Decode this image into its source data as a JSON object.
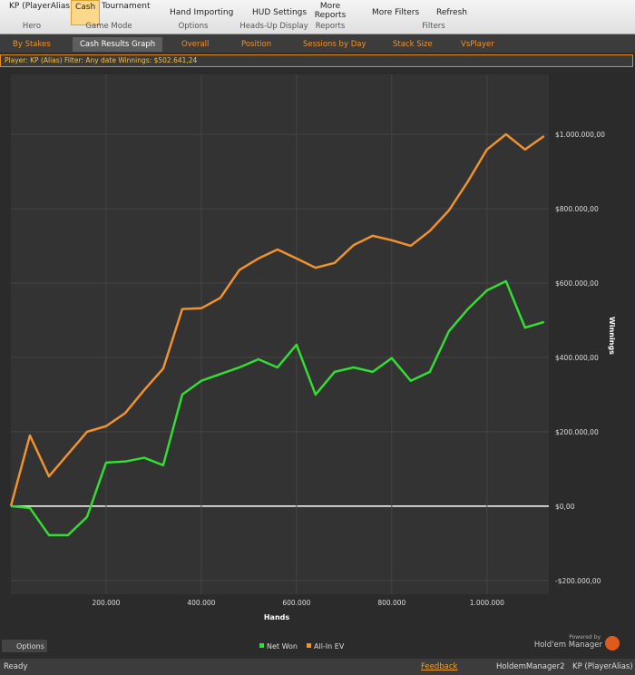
{
  "toolbar": {
    "groups": [
      {
        "items": [
          "KP (PlayerAlias)"
        ],
        "caption": "Hero"
      },
      {
        "items": [
          "Cash",
          "Tournament"
        ],
        "caption": "Game Mode"
      },
      {
        "items": [
          "Hand Importing"
        ],
        "caption": "Options"
      },
      {
        "items": [
          "HUD Settings"
        ],
        "caption": "Heads-Up Display"
      },
      {
        "items": [
          "More Reports"
        ],
        "caption": "Reports"
      },
      {
        "items": [
          "More Filters",
          "Refresh"
        ],
        "caption": "Filters"
      }
    ]
  },
  "tabs": [
    "By Stakes",
    "Cash Results Graph",
    "Overall",
    "Position",
    "Sessions by Day",
    "Stack Size",
    "VsPlayer"
  ],
  "filter_bar": "Player: KP (Alias) Filter: Any date Winnings: $502.641,24",
  "chart_data": {
    "type": "line",
    "x_label": "Hands",
    "y_label": "Winnings",
    "x": [
      0,
      40000,
      80000,
      120000,
      160000,
      200000,
      240000,
      280000,
      320000,
      360000,
      400000,
      440000,
      480000,
      520000,
      560000,
      600000,
      640000,
      680000,
      720000,
      760000,
      800000,
      840000,
      880000,
      920000,
      960000,
      1000000,
      1040000,
      1080000,
      1120000
    ],
    "series": [
      {
        "name": "Net Won",
        "color": "#33dd33",
        "values": [
          0,
          -5000,
          -78000,
          -78000,
          -29000,
          117000,
          120000,
          130000,
          110000,
          300000,
          337000,
          355000,
          373000,
          395000,
          373000,
          434000,
          300000,
          361000,
          373000,
          361000,
          398000,
          337000,
          361000,
          470000,
          530000,
          580000,
          605000,
          480000,
          495000
        ]
      },
      {
        "name": "All-In EV",
        "color": "#f0922e",
        "values": [
          0,
          190000,
          80000,
          140000,
          200000,
          215000,
          250000,
          312000,
          370000,
          530000,
          532000,
          560000,
          635000,
          666000,
          690000,
          666000,
          641000,
          654000,
          702000,
          727000,
          715000,
          700000,
          740000,
          795000,
          873000,
          959000,
          1000000,
          959000,
          995000
        ]
      }
    ],
    "xlim": [
      0,
      1130000
    ],
    "xticks": [
      {
        "value": 200000,
        "label": "200.000"
      },
      {
        "value": 400000,
        "label": "400.000"
      },
      {
        "value": 600000,
        "label": "600.000"
      },
      {
        "value": 800000,
        "label": "800.000"
      },
      {
        "value": 1000000,
        "label": "1.000.000"
      }
    ],
    "ylim": [
      -237000,
      1161000
    ],
    "yticks": [
      {
        "value": -200000,
        "label": "-$200.000,00"
      },
      {
        "value": 0,
        "label": "$0,00"
      },
      {
        "value": 200000,
        "label": "$200.000,00"
      },
      {
        "value": 400000,
        "label": "$400.000,00"
      },
      {
        "value": 600000,
        "label": "$600.000,00"
      },
      {
        "value": 800000,
        "label": "$800.000,00"
      },
      {
        "value": 1000000,
        "label": "$1.000.000,00"
      }
    ],
    "grid": true
  },
  "footer": {
    "options": "Options",
    "powered": "Powered by",
    "brand": "Hold'em Manager"
  },
  "status_bar": {
    "status": "Ready",
    "feedback": "Feedback",
    "app": "HoldemManager2",
    "user": "KP (PlayerAlias)"
  }
}
